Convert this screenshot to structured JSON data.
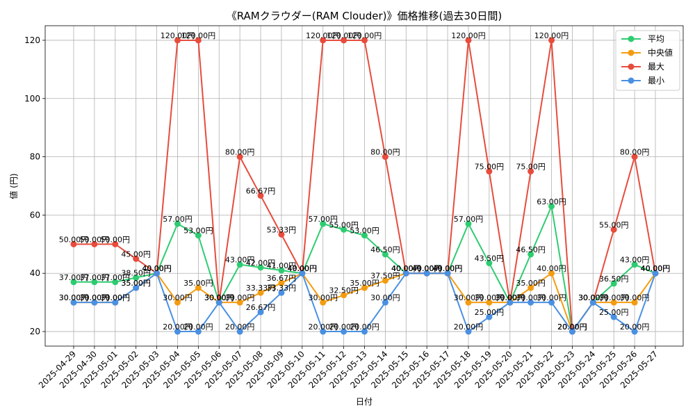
{
  "chart_data": {
    "type": "line",
    "title": "《RAMクラウダー(RAM Clouder)》価格推移(過去30日間)",
    "xlabel": "日付",
    "ylabel": "値 (円)",
    "ylim": [
      15,
      125
    ],
    "yticks": [
      20,
      40,
      60,
      80,
      100,
      120
    ],
    "grid": true,
    "legend_position": "top-right",
    "value_suffix": "円",
    "categories": [
      "2025-04-29",
      "2025-04-30",
      "2025-05-01",
      "2025-05-02",
      "2025-05-03",
      "2025-05-04",
      "2025-05-05",
      "2025-05-06",
      "2025-05-07",
      "2025-05-08",
      "2025-05-09",
      "2025-05-10",
      "2025-05-11",
      "2025-05-12",
      "2025-05-13",
      "2025-05-14",
      "2025-05-15",
      "2025-05-16",
      "2025-05-17",
      "2025-05-18",
      "2025-05-19",
      "2025-05-20",
      "2025-05-21",
      "2025-05-22",
      "2025-05-23",
      "2025-05-24",
      "2025-05-25",
      "2025-05-26",
      "2025-05-27"
    ],
    "series": [
      {
        "name": "平均",
        "color": "#2ecc71",
        "values": [
          37,
          37,
          37,
          38.5,
          40,
          57,
          53,
          30,
          43,
          42,
          41,
          40,
          57,
          55,
          53,
          46.5,
          40,
          40,
          40,
          57,
          43.5,
          30,
          46.5,
          63,
          20,
          30,
          36.5,
          43,
          40
        ]
      },
      {
        "name": "中央値",
        "color": "#f39c12",
        "values": [
          30,
          30,
          30,
          35,
          40,
          30,
          35,
          30,
          30,
          33.33,
          36.67,
          40,
          30,
          32.5,
          35,
          37.5,
          40,
          40,
          40,
          30,
          30,
          30,
          35,
          40,
          20,
          30,
          30,
          30,
          40
        ]
      },
      {
        "name": "最大",
        "color": "#e74c3c",
        "values": [
          50,
          50,
          50,
          45,
          40,
          120,
          120,
          30,
          80,
          66.67,
          53.33,
          40,
          120,
          120,
          120,
          80,
          40,
          40,
          40,
          120,
          75,
          30,
          75,
          120,
          20,
          30,
          55,
          80,
          40
        ]
      },
      {
        "name": "最小",
        "color": "#4a90e2",
        "values": [
          30,
          30,
          30,
          35,
          40,
          20,
          20,
          30,
          20,
          26.67,
          33.33,
          40,
          20,
          20,
          20,
          30,
          40,
          40,
          40,
          20,
          25,
          30,
          30,
          30,
          20,
          30,
          25,
          20,
          40
        ]
      }
    ]
  }
}
